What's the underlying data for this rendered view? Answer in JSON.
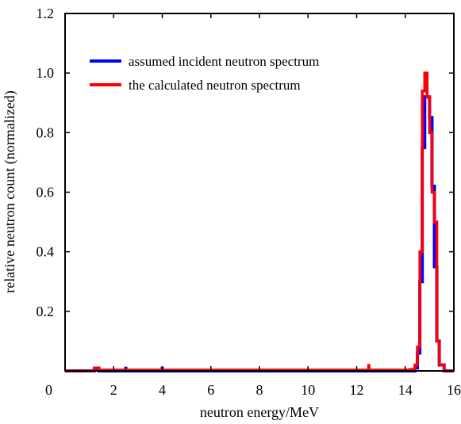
{
  "chart_data": {
    "type": "line",
    "title": "",
    "xlabel": "neutron energy/MeV",
    "ylabel": "relative neutron count (normalized)",
    "xlim": [
      0,
      16
    ],
    "ylim": [
      0,
      1.2
    ],
    "x_ticks": [
      "0",
      "2",
      "4",
      "6",
      "8",
      "10",
      "12",
      "14",
      "16"
    ],
    "y_ticks": [
      "0.2",
      "0.4",
      "0.6",
      "0.8",
      "1.0",
      "1.2"
    ],
    "legend_position": "top-left",
    "grid": false,
    "series": [
      {
        "name": "assumed incident neutron spectrum",
        "color": "#0000ff",
        "step_edges": [
          1.2,
          1.4,
          14.2,
          14.4,
          14.5,
          14.6,
          14.7,
          14.8,
          14.9,
          15.0,
          15.1,
          15.2,
          15.3,
          15.4,
          15.6,
          16.0
        ],
        "step_values": [
          0.003,
          0.0,
          0.0,
          0.01,
          0.06,
          0.3,
          0.75,
          0.92,
          0.92,
          0.85,
          0.62,
          0.35,
          0.1,
          0.02,
          0.0
        ],
        "spikes": [
          [
            2.5,
            0.006
          ],
          [
            4.0,
            0.006
          ]
        ]
      },
      {
        "name": "the calculated neutron spectrum",
        "color": "#ff0000",
        "step_edges": [
          1.2,
          1.4,
          14.2,
          14.4,
          14.5,
          14.6,
          14.7,
          14.8,
          14.9,
          15.0,
          15.1,
          15.2,
          15.3,
          15.4,
          15.6,
          16.0
        ],
        "step_values": [
          0.01,
          0.003,
          0.005,
          0.02,
          0.08,
          0.4,
          0.94,
          1.0,
          0.92,
          0.8,
          0.6,
          0.5,
          0.1,
          0.02,
          0.0
        ],
        "spikes": [
          [
            12.5,
            0.015
          ]
        ]
      }
    ]
  }
}
